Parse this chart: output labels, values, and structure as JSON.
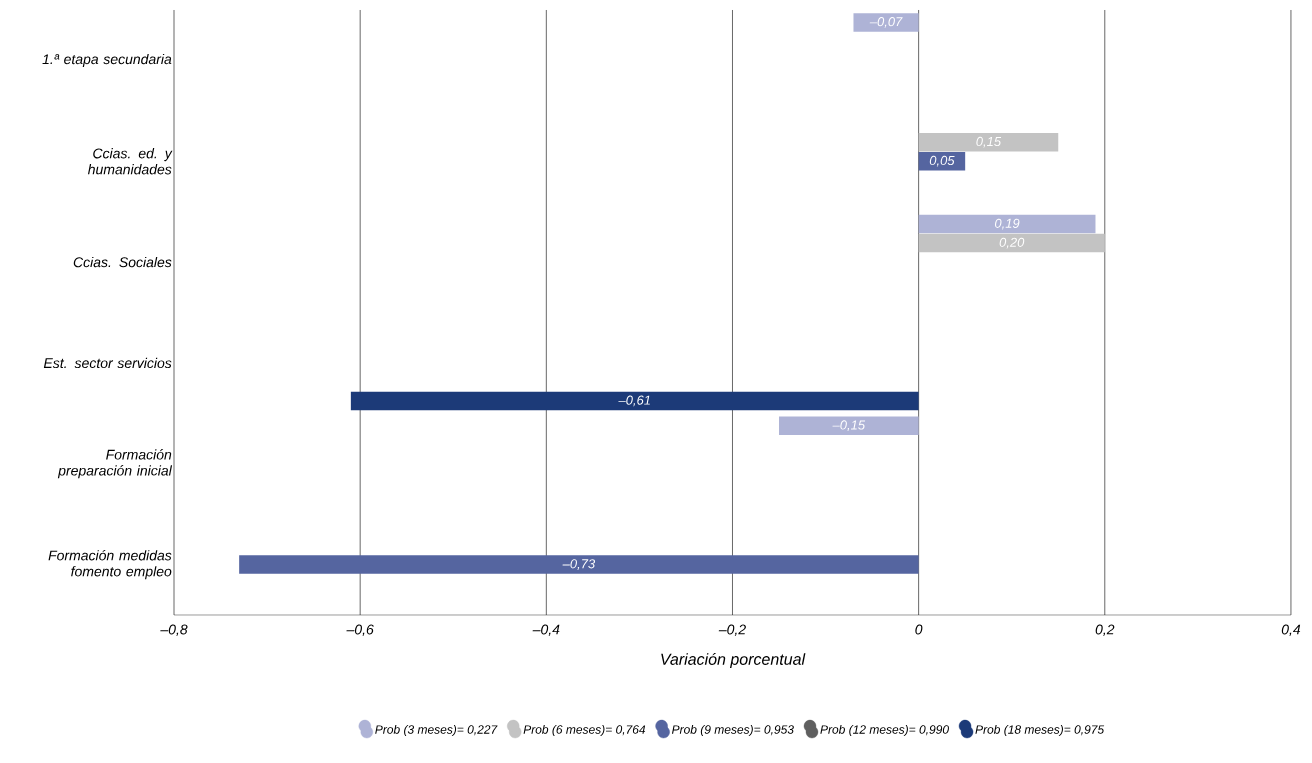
{
  "chart_data": {
    "type": "bar",
    "orientation": "horizontal",
    "xlabel": "Variación porcentual",
    "categories": [
      "1.ª etapa secundaria",
      "Ccias. ed. y humanidades",
      "Ccias. Sociales",
      "Est. sector servicios",
      "Formación preparación inicial",
      "Formación medidas fomento empleo"
    ],
    "series": [
      {
        "name": "Prob (3 meses)= 0,227",
        "color": "#aeb3d6",
        "values": [
          -0.07,
          null,
          0.19,
          null,
          -0.15,
          null
        ],
        "value_labels": [
          "–0,07",
          null,
          "0,19",
          null,
          "–0,15",
          null
        ]
      },
      {
        "name": "Prob (6 meses)= 0,764",
        "color": "#c3c3c3",
        "values": [
          null,
          0.15,
          0.2,
          null,
          null,
          null
        ],
        "value_labels": [
          null,
          "0,15",
          "0,20",
          null,
          null,
          null
        ]
      },
      {
        "name": "Prob (9 meses)= 0,953",
        "color": "#5565a0",
        "values": [
          null,
          0.05,
          null,
          null,
          null,
          -0.73
        ],
        "value_labels": [
          null,
          "0,05",
          null,
          null,
          null,
          "–0,73"
        ]
      },
      {
        "name": "Prob (12 meses)= 0,990",
        "color": "#5f5f5f",
        "values": [
          null,
          null,
          null,
          null,
          null,
          null
        ],
        "value_labels": [
          null,
          null,
          null,
          null,
          null,
          null
        ]
      },
      {
        "name": "Prob (18 meses)= 0,975",
        "color": "#1c3a78",
        "values": [
          null,
          null,
          null,
          -0.61,
          null,
          null
        ],
        "value_labels": [
          null,
          null,
          null,
          "–0,61",
          null,
          null
        ]
      }
    ],
    "xlim": [
      -0.8,
      0.4
    ],
    "xticks": [
      {
        "value": -0.8,
        "label": "–0,8"
      },
      {
        "value": -0.6,
        "label": "–0,6"
      },
      {
        "value": -0.4,
        "label": "–0,4"
      },
      {
        "value": -0.2,
        "label": "–0,2"
      },
      0,
      {
        "value": 0.2,
        "label": "0,2"
      },
      {
        "value": 0.4,
        "label": "0,4"
      }
    ],
    "grid": "x",
    "legend": "bottom",
    "marker": "circle"
  }
}
